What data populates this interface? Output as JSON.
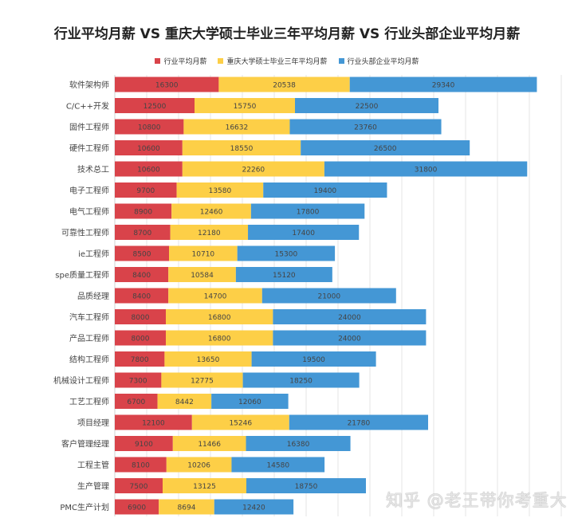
{
  "chart_data": {
    "type": "bar",
    "orientation": "horizontal",
    "stacked": true,
    "title": "行业平均月薪 VS 重庆大学硕士毕业三年平均月薪 VS 行业头部企业平均月薪",
    "legend_position": "top",
    "grid": true,
    "xlim": [
      0,
      70000
    ],
    "categories": [
      "软件架构师",
      "C/C++开发",
      "固件工程师",
      "硬件工程师",
      "技术总工",
      "电子工程师",
      "电气工程师",
      "可靠性工程师",
      "ie工程师",
      "spe质量工程师",
      "品质经理",
      "汽车工程师",
      "产品工程师",
      "结构工程师",
      "机械设计工程师",
      "工艺工程师",
      "项目经理",
      "客户管理经理",
      "工程主管",
      "生产管理",
      "PMC生产计划"
    ],
    "series": [
      {
        "name": "行业平均月薪",
        "color": "#d9434a",
        "values": [
          16300,
          12500,
          10800,
          10600,
          10600,
          9700,
          8900,
          8700,
          8500,
          8400,
          8400,
          8000,
          8000,
          7800,
          7300,
          6700,
          12100,
          9100,
          8100,
          7500,
          6900
        ]
      },
      {
        "name": "重庆大学硕士毕业三年平均月薪",
        "color": "#fdcf47",
        "values": [
          20538,
          15750,
          16632,
          18550,
          22260,
          13580,
          12460,
          12180,
          10710,
          10584,
          14700,
          16800,
          16800,
          13650,
          12775,
          8442,
          15246,
          11466,
          10206,
          13125,
          8694
        ]
      },
      {
        "name": "行业头部企业平均月薪",
        "color": "#4497d5",
        "values": [
          29340,
          22500,
          23760,
          26500,
          31800,
          19400,
          17800,
          17400,
          15300,
          15120,
          21000,
          24000,
          24000,
          19500,
          18250,
          12060,
          21780,
          16380,
          14580,
          18750,
          12420
        ]
      }
    ]
  },
  "watermark": "知乎 @老王带你考重大"
}
